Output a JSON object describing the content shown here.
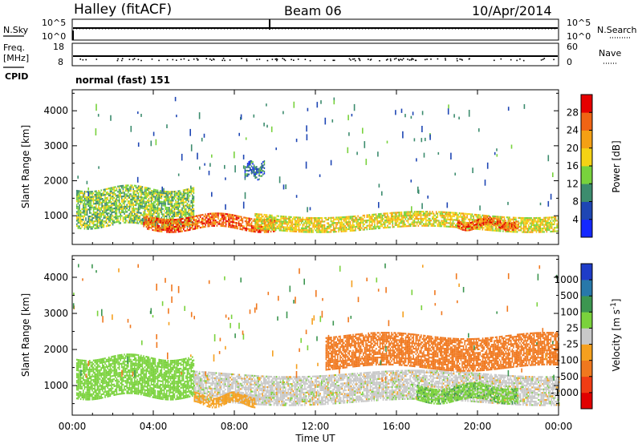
{
  "header": {
    "station": "Halley (fitACF)",
    "beam": "Beam 06",
    "date": "10/Apr/2014"
  },
  "noise_panel": {
    "left_label": "N.Sky",
    "right_label": "N.Search",
    "left_ticks": [
      "10^5",
      "10^0"
    ],
    "right_ticks": [
      "10^5",
      "10^0"
    ]
  },
  "freq_panel": {
    "left_label_line1": "Freq.",
    "left_label_line2": "[MHz]",
    "right_label": "Nave",
    "left_ticks": [
      "18",
      "8"
    ],
    "right_ticks": [
      "60",
      "0"
    ]
  },
  "cpid": {
    "label": "CPID",
    "value": "normal (fast) 151"
  },
  "chart_data": [
    {
      "type": "heatmap",
      "title": "Power",
      "ylabel": "Slant Range [km]",
      "ylim": [
        180,
        4600
      ],
      "y_ticks": [
        "1000",
        "2000",
        "3000",
        "4000"
      ],
      "colorbar_label": "Power [dB]",
      "colorbar_ticks": [
        "4",
        "8",
        "12",
        "16",
        "20",
        "24",
        "28"
      ],
      "colorbar_colors": [
        "#1428ff",
        "#1e46b4",
        "#3c8c6e",
        "#78d23c",
        "#f5d214",
        "#f5a014",
        "#f06414",
        "#e60000"
      ],
      "features": [
        {
          "x_hours": [
            0.2,
            6.0
          ],
          "range_km": [
            700,
            1800
          ],
          "value_db": 14
        },
        {
          "x_hours": [
            3.5,
            10.0
          ],
          "range_km": [
            600,
            1000
          ],
          "value_db": 26
        },
        {
          "x_hours": [
            9.0,
            24.0
          ],
          "range_km": [
            600,
            1050
          ],
          "value_db": 18
        },
        {
          "x_hours": [
            19.0,
            22.0
          ],
          "range_km": [
            650,
            900
          ],
          "value_db": 26
        },
        {
          "x_hours": [
            8.5,
            9.5
          ],
          "range_km": [
            2100,
            2500
          ],
          "value_db": 8
        }
      ]
    },
    {
      "type": "heatmap",
      "title": "Velocity",
      "ylabel": "Slant Range [km]",
      "xlabel": "Time UT",
      "ylim": [
        180,
        4600
      ],
      "y_ticks": [
        "1000",
        "2000",
        "3000",
        "4000"
      ],
      "x_ticks": [
        "00:00",
        "04:00",
        "08:00",
        "12:00",
        "16:00",
        "20:00",
        "00:00"
      ],
      "colorbar_label_text": "Velocity",
      "colorbar_label_units": "[m s",
      "colorbar_label_exp": "-1",
      "colorbar_label_close": "]",
      "colorbar_ticks": [
        "1000",
        "500",
        "100",
        "25",
        "-25",
        "-100",
        "-500",
        "-1000"
      ],
      "colorbar_colors": [
        "#1e3cc8",
        "#2878aa",
        "#3c9650",
        "#7ad23c",
        "#c8c8c8",
        "#f5a01e",
        "#f0781e",
        "#f03c14",
        "#e10000"
      ],
      "features": [
        {
          "x_hours": [
            0.2,
            6.0
          ],
          "range_km": [
            700,
            1800
          ],
          "value_ms": 60
        },
        {
          "x_hours": [
            6.0,
            24.0
          ],
          "range_km": [
            550,
            1350
          ],
          "value_ms": 0
        },
        {
          "x_hours": [
            6.0,
            9.0
          ],
          "range_km": [
            500,
            750
          ],
          "value_ms": -60
        },
        {
          "x_hours": [
            12.5,
            24.0
          ],
          "range_km": [
            1500,
            2400
          ],
          "value_ms": -150
        },
        {
          "x_hours": [
            17.0,
            22.0
          ],
          "range_km": [
            600,
            1000
          ],
          "value_ms": 80
        }
      ]
    }
  ]
}
